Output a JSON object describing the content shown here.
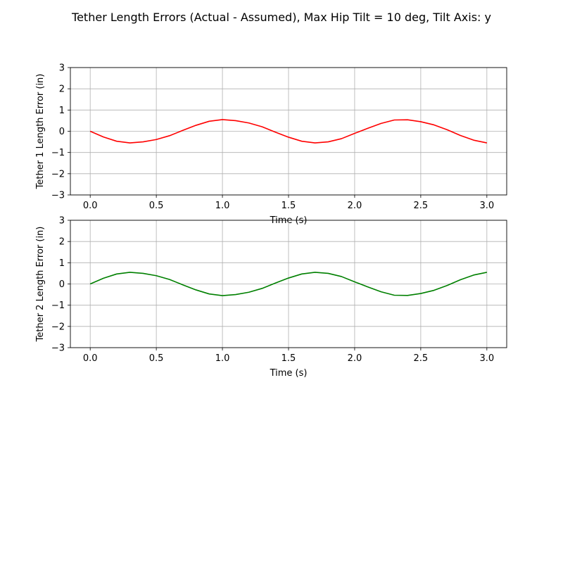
{
  "figure": {
    "title": "Tether Length Errors (Actual - Assumed), Max Hip Tilt = 10 deg, Tilt Axis: y"
  },
  "chart_data": [
    {
      "type": "line",
      "xlabel": "Time (s)",
      "ylabel": "Tether 1 Length Error (in)",
      "xlim": [
        -0.15,
        3.15
      ],
      "ylim": [
        -3,
        3
      ],
      "xticks": [
        "0.0",
        "0.5",
        "1.0",
        "1.5",
        "2.0",
        "2.5",
        "3.0"
      ],
      "yticks": [
        "−3",
        "−2",
        "−1",
        "0",
        "1",
        "2",
        "3"
      ],
      "grid": true,
      "series": [
        {
          "color": "#ff0000",
          "x": [
            0.0,
            0.1,
            0.2,
            0.3,
            0.4,
            0.5,
            0.6,
            0.7,
            0.8,
            0.9,
            1.0,
            1.1,
            1.2,
            1.3,
            1.4,
            1.5,
            1.6,
            1.7,
            1.8,
            1.9,
            2.0,
            2.1,
            2.2,
            2.3,
            2.4,
            2.5,
            2.6,
            2.7,
            2.8,
            2.9,
            3.0
          ],
          "y": [
            0.0,
            -0.27,
            -0.47,
            -0.55,
            -0.5,
            -0.39,
            -0.21,
            0.04,
            0.28,
            0.47,
            0.55,
            0.5,
            0.39,
            0.21,
            -0.04,
            -0.28,
            -0.47,
            -0.55,
            -0.5,
            -0.35,
            -0.1,
            0.14,
            0.37,
            0.53,
            0.54,
            0.45,
            0.3,
            0.07,
            -0.2,
            -0.42,
            -0.55
          ]
        }
      ]
    },
    {
      "type": "line",
      "xlabel": "Time (s)",
      "ylabel": "Tether 2 Length Error (in)",
      "xlim": [
        -0.15,
        3.15
      ],
      "ylim": [
        -3,
        3
      ],
      "xticks": [
        "0.0",
        "0.5",
        "1.0",
        "1.5",
        "2.0",
        "2.5",
        "3.0"
      ],
      "yticks": [
        "−3",
        "−2",
        "−1",
        "0",
        "1",
        "2",
        "3"
      ],
      "grid": true,
      "series": [
        {
          "color": "#008000",
          "x": [
            0.0,
            0.1,
            0.2,
            0.3,
            0.4,
            0.5,
            0.6,
            0.7,
            0.8,
            0.9,
            1.0,
            1.1,
            1.2,
            1.3,
            1.4,
            1.5,
            1.6,
            1.7,
            1.8,
            1.9,
            2.0,
            2.1,
            2.2,
            2.3,
            2.4,
            2.5,
            2.6,
            2.7,
            2.8,
            2.9,
            3.0
          ],
          "y": [
            0.0,
            0.27,
            0.47,
            0.55,
            0.5,
            0.39,
            0.21,
            -0.04,
            -0.28,
            -0.47,
            -0.55,
            -0.5,
            -0.39,
            -0.21,
            0.04,
            0.28,
            0.47,
            0.55,
            0.5,
            0.35,
            0.1,
            -0.14,
            -0.37,
            -0.53,
            -0.54,
            -0.45,
            -0.3,
            -0.07,
            0.2,
            0.42,
            0.55
          ]
        }
      ]
    }
  ]
}
